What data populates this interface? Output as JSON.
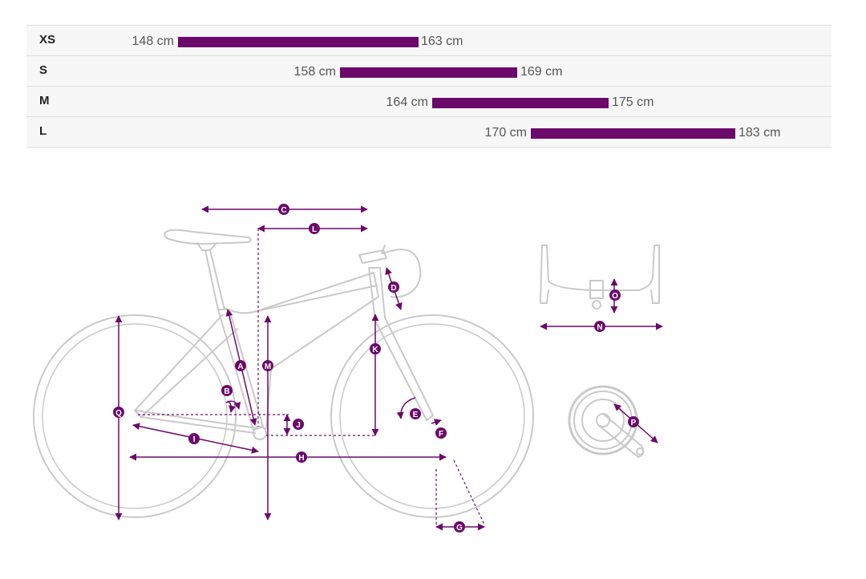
{
  "colors": {
    "accent": "#6b0a6b",
    "frame_line": "#c9c9c9",
    "dashed": "#6b0a6b"
  },
  "size_table": [
    {
      "size": "XS",
      "min": "148 cm",
      "max": "163 cm",
      "min_cm": 148,
      "max_cm": 163
    },
    {
      "size": "S",
      "min": "158 cm",
      "max": "169 cm",
      "min_cm": 158,
      "max_cm": 169
    },
    {
      "size": "M",
      "min": "164 cm",
      "max": "175 cm",
      "min_cm": 164,
      "max_cm": 175
    },
    {
      "size": "L",
      "min": "170 cm",
      "max": "183 cm",
      "min_cm": 170,
      "max_cm": 183
    }
  ],
  "geometry_labels": {
    "A": "A",
    "B": "B",
    "C": "C",
    "D": "D",
    "E": "E",
    "F": "F",
    "G": "G",
    "H": "H",
    "I": "I",
    "J": "J",
    "K": "K",
    "L": "L",
    "M": "M",
    "N": "N",
    "O": "O",
    "P": "P",
    "Q": "Q"
  }
}
